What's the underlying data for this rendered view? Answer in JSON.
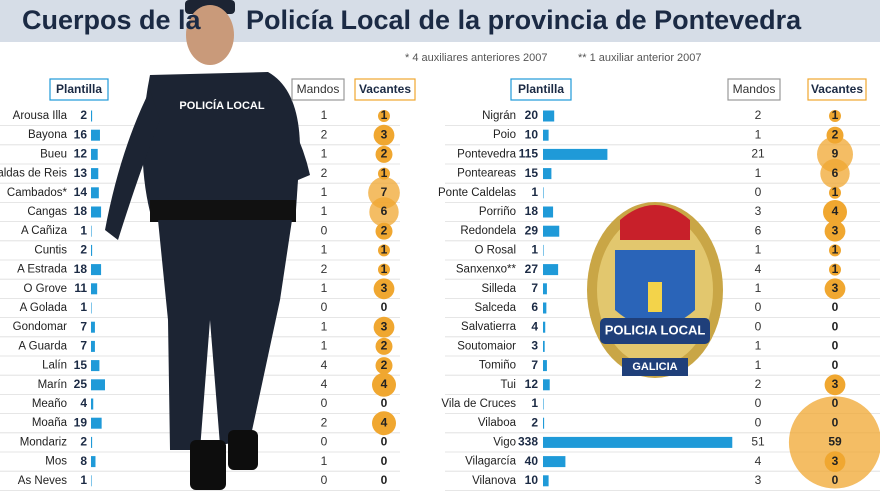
{
  "header": {
    "title": [
      "Cuerpos de la",
      "Policía Local de la provincia de Pontevedra"
    ],
    "notes": [
      "* 4 auxiliares anteriores 2007",
      "** 1 auxiliar anterior 2007"
    ]
  },
  "images": {
    "uniform_text": "POLICÍA LOCAL",
    "badge_text": "POLICIA LOCAL",
    "badge_region": "GALICIA"
  },
  "chart_data": [
    {
      "type": "bar",
      "categories": [
        "Arousa Illa",
        "Bayona",
        "Bueu",
        "Caldas de Reis",
        "Cambados*",
        "Cangas",
        "A Cañiza",
        "Cuntis",
        "A Estrada",
        "O Grove",
        "A Golada",
        "Gondomar",
        "A Guarda",
        "Lalín",
        "Marín",
        "Meaño",
        "Moaña",
        "Mondariz",
        "Mos",
        "As Neves"
      ],
      "series": [
        {
          "name": "Plantilla",
          "color": "#1f9ad8",
          "values": [
            2,
            16,
            12,
            13,
            14,
            18,
            1,
            2,
            18,
            11,
            1,
            7,
            7,
            15,
            25,
            4,
            19,
            2,
            8,
            1
          ]
        },
        {
          "name": "Mandos",
          "values": [
            1,
            2,
            1,
            2,
            1,
            1,
            0,
            1,
            2,
            1,
            0,
            1,
            1,
            4,
            4,
            0,
            2,
            0,
            1,
            0
          ]
        },
        {
          "name": "Vacantes",
          "color": "#f0a730",
          "values": [
            1,
            3,
            2,
            1,
            7,
            6,
            2,
            1,
            1,
            3,
            0,
            3,
            2,
            2,
            4,
            0,
            4,
            0,
            0,
            0
          ]
        }
      ]
    },
    {
      "type": "bar",
      "categories": [
        "Nigrán",
        "Poio",
        "Pontevedra",
        "Ponteareas",
        "Ponte Caldelas",
        "Porriño",
        "Redondela",
        "O Rosal",
        "Sanxenxo**",
        "Silleda",
        "Salceda",
        "Salvatierra",
        "Soutomaior",
        "Tomiño",
        "Tui",
        "Vila de Cruces",
        "Vilaboa",
        "Vigo",
        "Vilagarcía",
        "Vilanova"
      ],
      "series": [
        {
          "name": "Plantilla",
          "color": "#1f9ad8",
          "values": [
            20,
            10,
            115,
            15,
            1,
            18,
            29,
            1,
            27,
            7,
            6,
            4,
            3,
            7,
            12,
            1,
            2,
            338,
            40,
            10
          ]
        },
        {
          "name": "Mandos",
          "values": [
            2,
            1,
            21,
            1,
            0,
            3,
            6,
            1,
            4,
            1,
            0,
            0,
            1,
            1,
            2,
            0,
            0,
            51,
            4,
            3
          ]
        },
        {
          "name": "Vacantes",
          "color": "#f0a730",
          "values": [
            1,
            2,
            9,
            6,
            1,
            4,
            3,
            1,
            1,
            3,
            0,
            0,
            0,
            0,
            3,
            0,
            0,
            59,
            3,
            0
          ]
        }
      ]
    }
  ]
}
